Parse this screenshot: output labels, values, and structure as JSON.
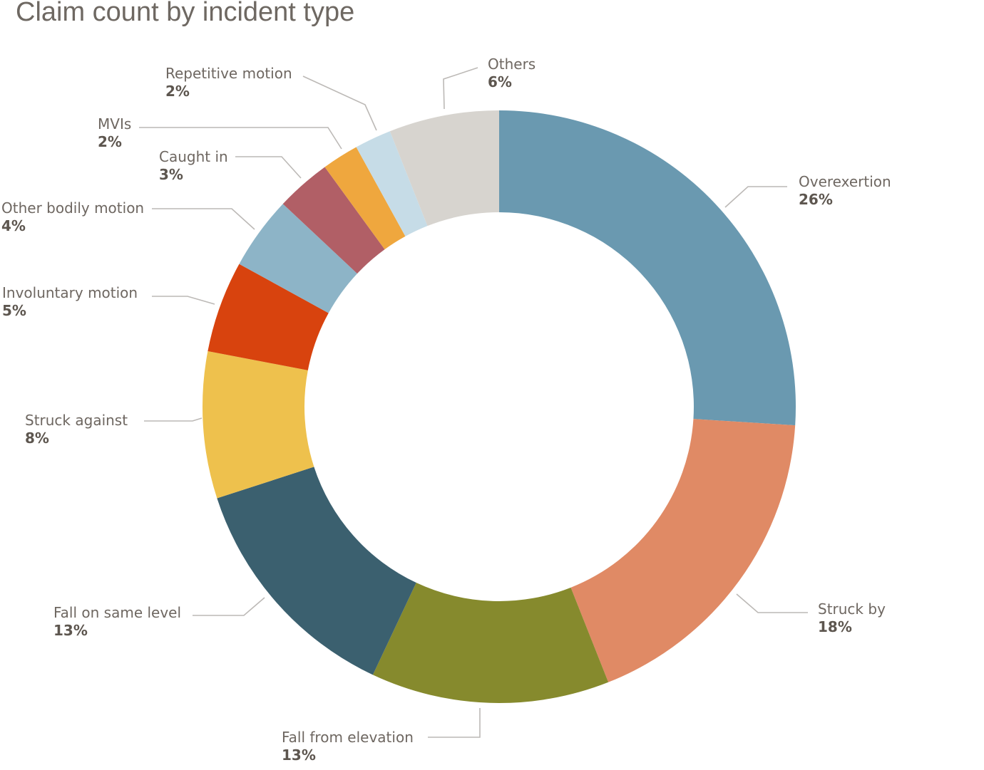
{
  "header": {
    "title": "Claim count by incident type"
  },
  "chart_data": {
    "type": "pie",
    "subtype": "donut",
    "title": "Claim count by incident type",
    "unit": "%",
    "start_angle_deg": 0,
    "direction": "clockwise",
    "legend_position": "outside-callout-labels",
    "total": 100,
    "slices": [
      {
        "label": "Overexertion",
        "value": 26,
        "percent_label": "26%",
        "color": "#6a99b0"
      },
      {
        "label": "Struck by",
        "value": 18,
        "percent_label": "18%",
        "color": "#e08a65"
      },
      {
        "label": "Fall from elevation",
        "value": 13,
        "percent_label": "13%",
        "color": "#868a2d"
      },
      {
        "label": "Fall on same level",
        "value": 13,
        "percent_label": "13%",
        "color": "#3b606f"
      },
      {
        "label": "Struck against",
        "value": 8,
        "percent_label": "8%",
        "color": "#eec14d"
      },
      {
        "label": "Involuntary motion",
        "value": 5,
        "percent_label": "5%",
        "color": "#d8430e"
      },
      {
        "label": "Other bodily motion",
        "value": 4,
        "percent_label": "4%",
        "color": "#8db4c7"
      },
      {
        "label": "Caught in",
        "value": 3,
        "percent_label": "3%",
        "color": "#b15f66"
      },
      {
        "label": "MVIs",
        "value": 2,
        "percent_label": "2%",
        "color": "#efa73e"
      },
      {
        "label": "Repetitive motion",
        "value": 2,
        "percent_label": "2%",
        "color": "#c6dce7"
      },
      {
        "label": "Others",
        "value": 6,
        "percent_label": "6%",
        "color": "#d7d4cf"
      }
    ]
  }
}
